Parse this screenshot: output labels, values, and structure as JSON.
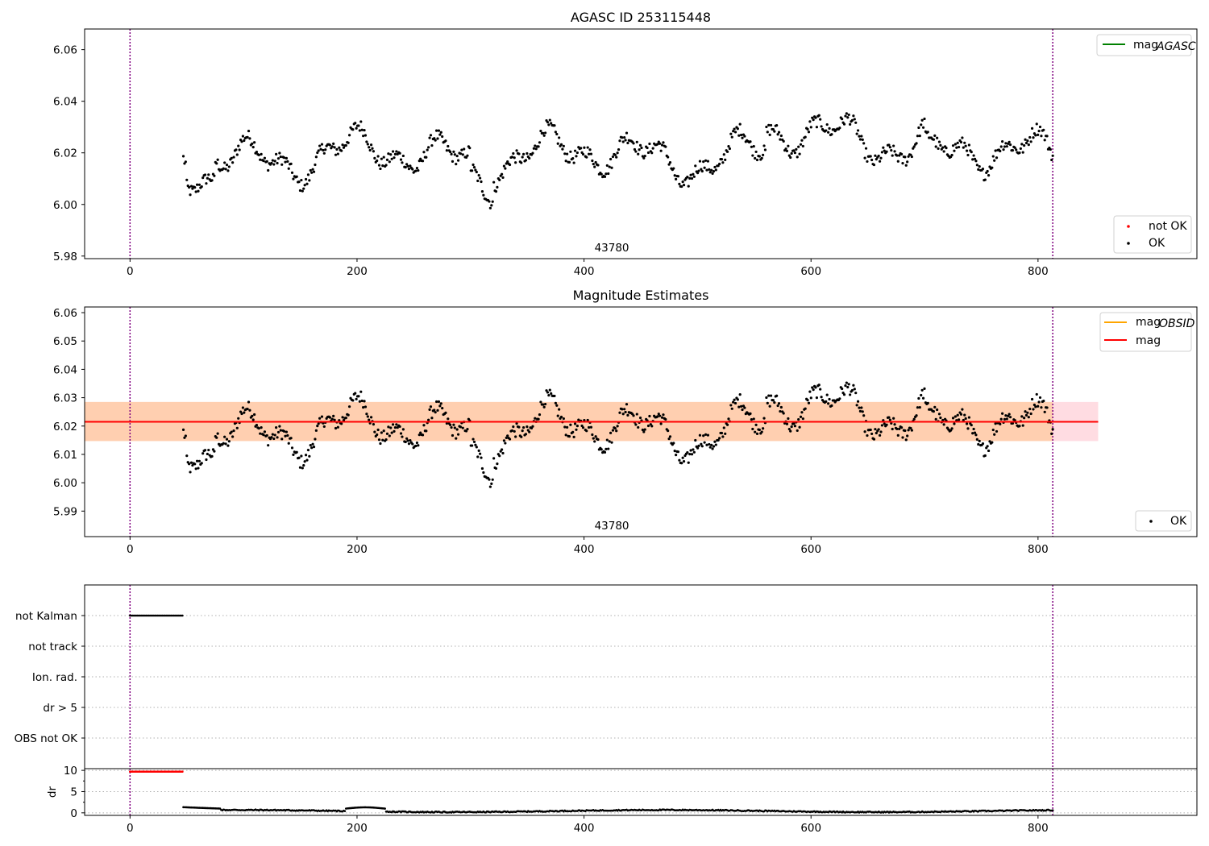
{
  "chart_data": [
    {
      "type": "scatter",
      "title": "AGASC ID 253115448",
      "xlim": [
        -40,
        940
      ],
      "ylim": [
        5.979,
        6.068
      ],
      "xticks": [
        0,
        200,
        400,
        600,
        800
      ],
      "xtick_labels": [
        "0",
        "200",
        "400",
        "600",
        "800"
      ],
      "yticks": [
        5.98,
        6.0,
        6.02,
        6.04,
        6.06
      ],
      "ytick_labels": [
        "5.98",
        "6.00",
        "6.02",
        "6.04",
        "6.06"
      ],
      "vlines": [
        0,
        813
      ],
      "annotation": "43780",
      "annotation_x": 406,
      "legend_lines": [
        {
          "label": "mag",
          "sub": "AGASC",
          "color": "#008000"
        }
      ],
      "legend_points": [
        {
          "label": "not OK",
          "color": "#ff0000"
        },
        {
          "label": "OK",
          "color": "#000000"
        }
      ],
      "series": [
        {
          "name": "OK",
          "color": "#000000",
          "x_range": [
            47,
            813
          ]
        }
      ]
    },
    {
      "type": "scatter",
      "title": "Magnitude Estimates",
      "xlim": [
        -40,
        940
      ],
      "ylim": [
        5.981,
        6.062
      ],
      "xticks": [
        0,
        200,
        400,
        600,
        800
      ],
      "xtick_labels": [
        "0",
        "200",
        "400",
        "600",
        "800"
      ],
      "yticks": [
        5.99,
        6.0,
        6.01,
        6.02,
        6.03,
        6.04,
        6.05,
        6.06
      ],
      "ytick_labels": [
        "5.99",
        "6.00",
        "6.01",
        "6.02",
        "6.03",
        "6.04",
        "6.05",
        "6.06"
      ],
      "vlines": [
        0,
        813
      ],
      "annotation": "43780",
      "annotation_x": 406,
      "mag": 6.0215,
      "band_low": 6.0147,
      "band_high": 6.0285,
      "band_x": [
        -40,
        853
      ],
      "legend_lines": [
        {
          "label": "mag",
          "sub": "OBSID",
          "color": "#ffa500"
        },
        {
          "label": "mag",
          "sub": "",
          "color": "#ff0000"
        }
      ],
      "legend_points": [
        {
          "label": "OK",
          "color": "#000000"
        }
      ],
      "series": [
        {
          "name": "OK",
          "color": "#000000",
          "x_range": [
            47,
            813
          ]
        }
      ]
    },
    {
      "type": "scatter",
      "title": "",
      "xlim": [
        -40,
        940
      ],
      "categories": [
        "not Kalman",
        "not track",
        "Ion. rad.",
        "dr > 5",
        "OBS not OK"
      ],
      "flags": [
        {
          "category": "not Kalman",
          "x_range": [
            0,
            47
          ]
        }
      ],
      "vlines": [
        0,
        813
      ]
    },
    {
      "type": "scatter",
      "title": "",
      "ylabel": "dr",
      "xlim": [
        -40,
        940
      ],
      "ylim": [
        -0.6,
        10.4
      ],
      "xticks": [
        0,
        200,
        400,
        600,
        800
      ],
      "xtick_labels": [
        "0",
        "200",
        "400",
        "600",
        "800"
      ],
      "yticks": [
        0,
        5,
        10
      ],
      "ytick_labels": [
        "0",
        "5",
        "10"
      ],
      "vlines": [
        0,
        813
      ],
      "series": [
        {
          "name": "dr (not OK)",
          "color": "#ff0000",
          "x_range": [
            0,
            47
          ],
          "y": 9.7
        },
        {
          "name": "dr",
          "color": "#000000",
          "x_range": [
            47,
            813
          ]
        }
      ]
    }
  ],
  "colors": {
    "vline": "#800080",
    "band_orange": "#ffa500",
    "band_pink": "#ffc0cb",
    "grid": "#b0b0b0"
  }
}
